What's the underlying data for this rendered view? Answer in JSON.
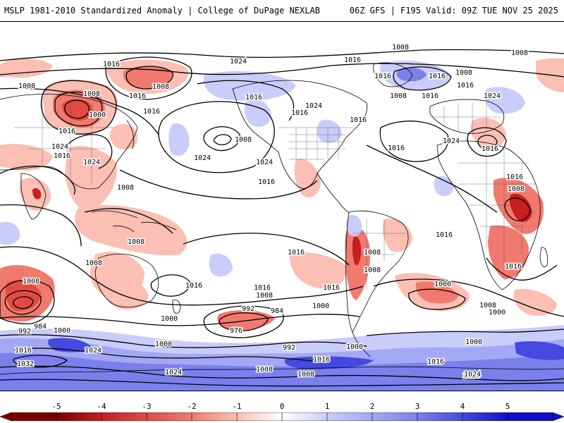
{
  "header": {
    "title": "MSLP 1981-2010 Standardized Anomaly | College of DuPage NEXLAB",
    "run_info": "06Z GFS | F195 Valid: 09Z TUE NOV 25 2025"
  },
  "map": {
    "pressure_labels": [
      {
        "id": "p1",
        "text": "1016"
      },
      {
        "id": "p2",
        "text": "1008"
      },
      {
        "id": "p3",
        "text": "1024"
      },
      {
        "id": "p4",
        "text": "1008"
      },
      {
        "id": "p5",
        "text": "1008"
      },
      {
        "id": "p6",
        "text": "1016"
      },
      {
        "id": "p7",
        "text": "1000"
      },
      {
        "id": "p8",
        "text": "1016"
      },
      {
        "id": "p9",
        "text": "1016"
      },
      {
        "id": "p10",
        "text": "1024"
      },
      {
        "id": "p11",
        "text": "1016"
      },
      {
        "id": "p12",
        "text": "1024"
      },
      {
        "id": "p13",
        "text": "1008"
      },
      {
        "id": "p14",
        "text": "1024"
      },
      {
        "id": "p15",
        "text": "1024"
      },
      {
        "id": "p16",
        "text": "1016"
      },
      {
        "id": "p17",
        "text": "1016"
      },
      {
        "id": "p18",
        "text": "1024"
      },
      {
        "id": "p19",
        "text": "1016"
      },
      {
        "id": "p20",
        "text": "1008"
      },
      {
        "id": "p21",
        "text": "1016"
      },
      {
        "id": "p22",
        "text": "1008"
      },
      {
        "id": "p23",
        "text": "1008"
      },
      {
        "id": "p24",
        "text": "1016"
      },
      {
        "id": "p25",
        "text": "1008"
      },
      {
        "id": "p26",
        "text": "1016"
      },
      {
        "id": "p27",
        "text": "1016"
      },
      {
        "id": "p28",
        "text": "1024"
      },
      {
        "id": "p29",
        "text": "1016"
      },
      {
        "id": "p30",
        "text": "1016"
      },
      {
        "id": "p31",
        "text": "1024"
      },
      {
        "id": "p32",
        "text": "1016"
      },
      {
        "id": "p33",
        "text": "1008"
      },
      {
        "id": "p34",
        "text": "1008"
      },
      {
        "id": "p35",
        "text": "1016"
      },
      {
        "id": "p36",
        "text": "1016"
      },
      {
        "id": "p37",
        "text": "1016"
      },
      {
        "id": "p38",
        "text": "1008"
      },
      {
        "id": "p39",
        "text": "1016"
      },
      {
        "id": "p40",
        "text": "1016"
      },
      {
        "id": "p41",
        "text": "1008"
      },
      {
        "id": "p42",
        "text": "1008"
      },
      {
        "id": "p43",
        "text": "1000"
      },
      {
        "id": "p44",
        "text": "992"
      },
      {
        "id": "p45",
        "text": "984"
      },
      {
        "id": "p46",
        "text": "1000"
      },
      {
        "id": "p47",
        "text": "1008"
      },
      {
        "id": "p48",
        "text": "1016"
      },
      {
        "id": "p49",
        "text": "1008"
      },
      {
        "id": "p50",
        "text": "1016"
      },
      {
        "id": "p51",
        "text": "1000"
      },
      {
        "id": "p52",
        "text": "992"
      },
      {
        "id": "p53",
        "text": "984"
      },
      {
        "id": "p54",
        "text": "1000"
      },
      {
        "id": "p55",
        "text": "976"
      },
      {
        "id": "p56",
        "text": "1000"
      },
      {
        "id": "p57",
        "text": "1000"
      },
      {
        "id": "p58",
        "text": "992"
      },
      {
        "id": "p59",
        "text": "1000"
      },
      {
        "id": "p60",
        "text": "1000"
      },
      {
        "id": "p61",
        "text": "1008"
      },
      {
        "id": "p62",
        "text": "1024"
      },
      {
        "id": "p63",
        "text": "1032"
      },
      {
        "id": "p64",
        "text": "1016"
      },
      {
        "id": "p65",
        "text": "1024"
      },
      {
        "id": "p66",
        "text": "1008"
      },
      {
        "id": "p67",
        "text": "1016"
      },
      {
        "id": "p68",
        "text": "1008"
      },
      {
        "id": "p69",
        "text": "1016"
      },
      {
        "id": "p70",
        "text": "1024"
      },
      {
        "id": "p71",
        "text": "1024"
      },
      {
        "id": "p72",
        "text": "1008"
      },
      {
        "id": "p73",
        "text": "1016"
      },
      {
        "id": "p74",
        "text": "1024"
      }
    ]
  },
  "colorbar": {
    "ticks": [
      "-5",
      "-4",
      "-3",
      "-2",
      "-1",
      "0",
      "1",
      "2",
      "3",
      "4",
      "5"
    ],
    "colors": {
      "neg5": "#7a0000",
      "neg4": "#c81e1e",
      "neg3": "#e24a42",
      "neg2": "#f07a6e",
      "neg1": "#fbbfb4",
      "zero": "#ffffff",
      "pos1": "#c9cdfa",
      "pos2": "#a3a8f4",
      "pos3": "#7b80ec",
      "pos4": "#4549e0",
      "pos5": "#1010cc"
    }
  }
}
